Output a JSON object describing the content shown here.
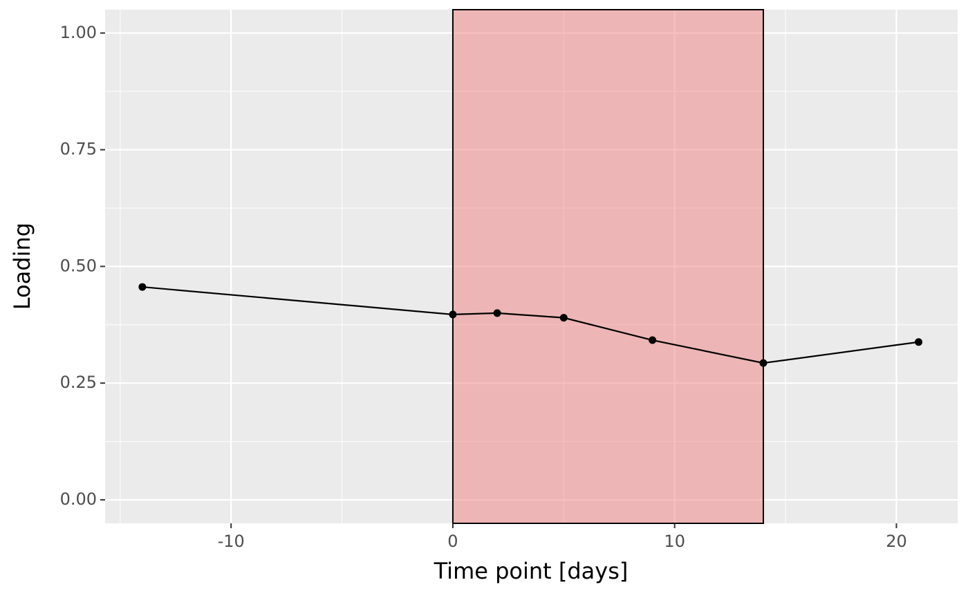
{
  "chart_data": {
    "type": "line",
    "x_label": "Time point [days]",
    "y_label": "Loading",
    "x": [
      -14,
      0,
      2,
      5,
      9,
      14,
      21
    ],
    "values": [
      0.456,
      0.397,
      0.4,
      0.39,
      0.342,
      0.293,
      0.338
    ],
    "color": "#000000",
    "xlim": [
      -15.68,
      22.76
    ],
    "ylim": [
      -0.0504,
      1.05
    ],
    "xticks": [
      -10,
      0,
      10,
      20
    ],
    "yticks": [
      {
        "value": 0,
        "label": "0.00"
      },
      {
        "value": 0.25,
        "label": "0.25"
      },
      {
        "value": 0.5,
        "label": "0.50"
      },
      {
        "value": 0.75,
        "label": "0.75"
      },
      {
        "value": 1,
        "label": "1.00"
      }
    ],
    "minor_xticks": [
      -15,
      -5,
      5,
      15
    ],
    "minor_yticks": [
      0.125,
      0.375,
      0.625,
      0.875
    ],
    "shade": {
      "xrange": [
        0,
        14
      ],
      "color": "#f08080"
    },
    "grid": true
  }
}
